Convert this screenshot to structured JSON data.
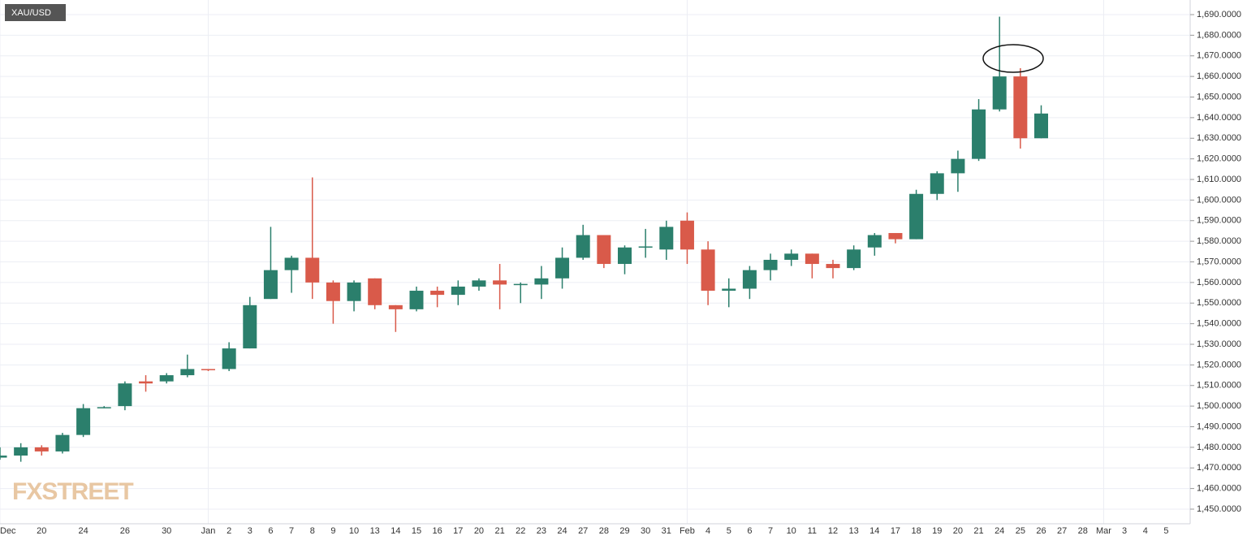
{
  "chart_data": {
    "type": "candlestick",
    "title": "XAU/USD",
    "watermark": "FXSTREET",
    "categories": [
      "Dec",
      null,
      "20",
      null,
      "24",
      null,
      "26",
      null,
      "30",
      null,
      "Jan",
      "2",
      "3",
      "6",
      "7",
      "8",
      "9",
      "10",
      "13",
      "14",
      "15",
      "16",
      "17",
      "20",
      "21",
      "22",
      "23",
      "24",
      "27",
      "28",
      "29",
      "30",
      "31",
      "Feb",
      "4",
      "5",
      "6",
      "7",
      "10",
      "11",
      "12",
      "13",
      "14",
      "17",
      "18",
      "19",
      "20",
      "21",
      "24",
      "25",
      "26",
      "27",
      "28",
      "Mar",
      "3",
      "4",
      "5"
    ],
    "open": [
      1475,
      1476,
      1480,
      1478,
      1486,
      1499,
      1500,
      1512,
      1512,
      1515,
      1518,
      1518,
      1528,
      1552,
      1566,
      1572,
      1560,
      1551,
      1562,
      1549,
      1547,
      1556,
      1554,
      1558,
      1561,
      1559,
      1559,
      1562,
      1572,
      1583,
      1569,
      1577,
      1576,
      1590,
      1576,
      1556,
      1557,
      1566,
      1571,
      1574,
      1569,
      1567,
      1577,
      1584,
      1581,
      1603,
      1613,
      1620,
      1644,
      1660,
      1630,
      null,
      null,
      null,
      null,
      null,
      null
    ],
    "high": [
      1480,
      1482,
      1481,
      1487,
      1501,
      1500,
      1512,
      1515,
      1516,
      1525,
      1518,
      1531,
      1553,
      1587,
      1573,
      1611,
      1561,
      1561,
      1562,
      1549,
      1558,
      1558,
      1561,
      1562,
      1569,
      1560,
      1568,
      1577,
      1588,
      1583,
      1578,
      1586,
      1590,
      1594,
      1580,
      1562,
      1568,
      1574,
      1576,
      1574,
      1571,
      1578,
      1584,
      1584,
      1605,
      1614,
      1624,
      1649,
      1689,
      1664,
      1646,
      null,
      null,
      null,
      null,
      null,
      null
    ],
    "low": [
      1474,
      1473,
      1476,
      1477,
      1485,
      1499,
      1498,
      1507,
      1511,
      1514,
      1517,
      1517,
      1528,
      1552,
      1555,
      1552,
      1540,
      1546,
      1547,
      1536,
      1546,
      1548,
      1549,
      1556,
      1547,
      1550,
      1552,
      1557,
      1571,
      1567,
      1564,
      1572,
      1571,
      1569,
      1549,
      1548,
      1552,
      1561,
      1568,
      1562,
      1562,
      1566,
      1573,
      1579,
      1581,
      1600,
      1604,
      1619,
      1643,
      1625,
      1630,
      null,
      null,
      null,
      null,
      null,
      null
    ],
    "close": [
      1476,
      1480,
      1478,
      1486,
      1499,
      1499.5,
      1511,
      1511,
      1515,
      1518,
      1517.5,
      1528,
      1549,
      1566,
      1572,
      1560,
      1551,
      1560,
      1549,
      1547,
      1556,
      1554,
      1558,
      1561,
      1559,
      1559.3,
      1562,
      1572,
      1583,
      1569,
      1577,
      1577.5,
      1587,
      1576,
      1556,
      1557,
      1566,
      1571,
      1574,
      1569,
      1567,
      1576,
      1583,
      1581,
      1603,
      1613,
      1620,
      1644,
      1660,
      1630,
      1642,
      null,
      null,
      null,
      null,
      null,
      null
    ],
    "up_color": "#2b7f6c",
    "down_color": "#d95a4a",
    "ylim": [
      1442.9,
      1697.1
    ],
    "yticks": [
      {
        "value": 1450,
        "label": "1,450.0000"
      },
      {
        "value": 1460,
        "label": "1,460.0000"
      },
      {
        "value": 1470,
        "label": "1,470.0000"
      },
      {
        "value": 1480,
        "label": "1,480.0000"
      },
      {
        "value": 1490,
        "label": "1,490.0000"
      },
      {
        "value": 1500,
        "label": "1,500.0000"
      },
      {
        "value": 1510,
        "label": "1,510.0000"
      },
      {
        "value": 1520,
        "label": "1,520.0000"
      },
      {
        "value": 1530,
        "label": "1,530.0000"
      },
      {
        "value": 1540,
        "label": "1,540.0000"
      },
      {
        "value": 1550,
        "label": "1,550.0000"
      },
      {
        "value": 1560,
        "label": "1,560.0000"
      },
      {
        "value": 1570,
        "label": "1,570.0000"
      },
      {
        "value": 1580,
        "label": "1,580.0000"
      },
      {
        "value": 1590,
        "label": "1,590.0000"
      },
      {
        "value": 1600,
        "label": "1,600.0000"
      },
      {
        "value": 1610,
        "label": "1,610.0000"
      },
      {
        "value": 1620,
        "label": "1,620.0000"
      },
      {
        "value": 1630,
        "label": "1,630.0000"
      },
      {
        "value": 1640,
        "label": "1,640.0000"
      },
      {
        "value": 1650,
        "label": "1,650.0000"
      },
      {
        "value": 1660,
        "label": "1,660.0000"
      },
      {
        "value": 1670,
        "label": "1,670.0000"
      },
      {
        "value": 1680,
        "label": "1,680.0000"
      },
      {
        "value": 1690,
        "label": "1,690.0000"
      }
    ],
    "grid": true
  }
}
